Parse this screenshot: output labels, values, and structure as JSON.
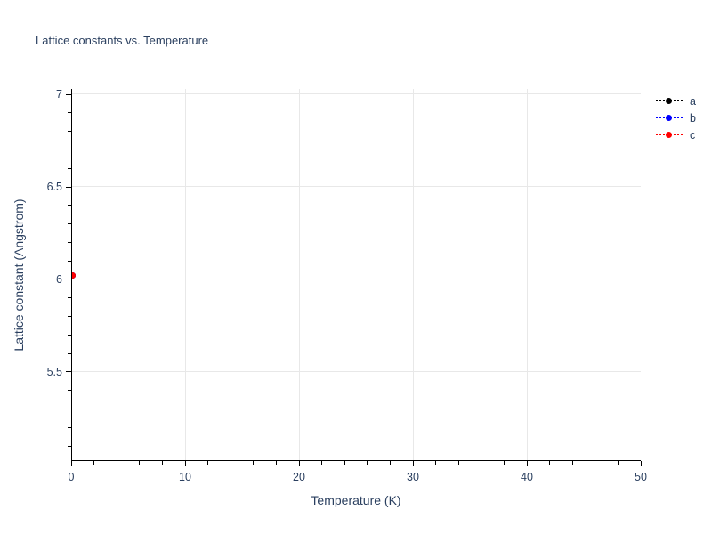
{
  "title": "Lattice constants vs. Temperature",
  "colors": {
    "text": "#2a3f5f",
    "axis_line": "#000000",
    "gridline": "#e8e8e8",
    "background": "#ffffff",
    "series_a": "#000000",
    "series_b": "#0000ff",
    "series_c": "#ff0000"
  },
  "chart_data": {
    "type": "scatter",
    "title": "Lattice constants vs. Temperature",
    "xlabel": "Temperature (K)",
    "ylabel": "Lattice constant (Angstrom)",
    "xlim": [
      0,
      50
    ],
    "ylim": [
      5.019,
      7.029
    ],
    "x_ticks": [
      0,
      10,
      20,
      30,
      40,
      50
    ],
    "x_minor_step": 2,
    "y_ticks": [
      5.5,
      6,
      6.5,
      7
    ],
    "y_minor_step": 0.1,
    "grid": true,
    "legend_position": "top-right-outside",
    "series": [
      {
        "name": "a",
        "color": "#000000",
        "line_style": "dotted",
        "marker": "circle",
        "x": [
          0
        ],
        "y": [
          6.02
        ]
      },
      {
        "name": "b",
        "color": "#0000ff",
        "line_style": "dotted",
        "marker": "circle",
        "x": [
          0
        ],
        "y": [
          6.02
        ]
      },
      {
        "name": "c",
        "color": "#ff0000",
        "line_style": "dotted",
        "marker": "circle",
        "x": [
          0
        ],
        "y": [
          6.02
        ]
      }
    ]
  }
}
